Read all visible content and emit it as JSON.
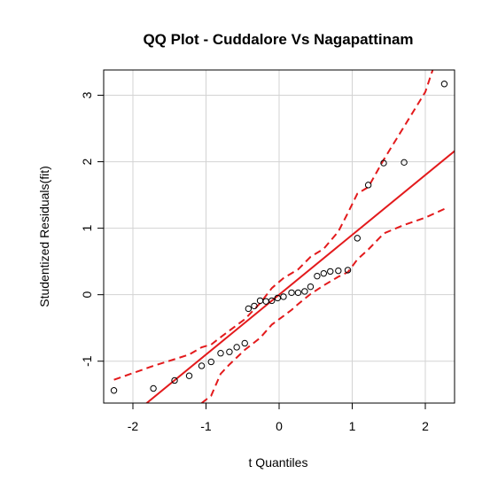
{
  "chart_data": {
    "type": "scatter",
    "title": "QQ Plot - Cuddalore Vs Nagapattinam",
    "xlabel": "t Quantiles",
    "ylabel": "Studentized Residuals(fit)",
    "xlim": [
      -2.4,
      2.4
    ],
    "ylim": [
      -1.63,
      3.38
    ],
    "xticks": [
      -2,
      -1,
      0,
      1,
      2
    ],
    "yticks": [
      -1,
      0,
      1,
      2,
      3
    ],
    "grid": true,
    "colors": {
      "reference": "#e31a1c",
      "points": "#000000",
      "grid": "#d3d3d3"
    },
    "points": [
      [
        -2.26,
        -1.44
      ],
      [
        -1.72,
        -1.41
      ],
      [
        -1.43,
        -1.29
      ],
      [
        -1.23,
        -1.22
      ],
      [
        -1.06,
        -1.07
      ],
      [
        -0.93,
        -1.01
      ],
      [
        -0.8,
        -0.88
      ],
      [
        -0.68,
        -0.86
      ],
      [
        -0.58,
        -0.79
      ],
      [
        -0.47,
        -0.73
      ],
      [
        -0.42,
        -0.21
      ],
      [
        -0.34,
        -0.17
      ],
      [
        -0.26,
        -0.09
      ],
      [
        -0.18,
        -0.1
      ],
      [
        -0.1,
        -0.09
      ],
      [
        -0.02,
        -0.05
      ],
      [
        0.06,
        -0.03
      ],
      [
        0.17,
        0.03
      ],
      [
        0.26,
        0.03
      ],
      [
        0.35,
        0.05
      ],
      [
        0.43,
        0.12
      ],
      [
        0.52,
        0.28
      ],
      [
        0.61,
        0.32
      ],
      [
        0.7,
        0.35
      ],
      [
        0.81,
        0.36
      ],
      [
        0.94,
        0.37
      ],
      [
        1.07,
        0.85
      ],
      [
        1.22,
        1.65
      ],
      [
        1.43,
        1.98
      ],
      [
        1.71,
        1.99
      ],
      [
        2.26,
        3.17
      ]
    ],
    "reference_line": {
      "intercept": 0.0,
      "slope": 0.9
    },
    "envelope_upper": [
      [
        -2.26,
        -1.28
      ],
      [
        -1.72,
        -1.07
      ],
      [
        -1.43,
        -0.97
      ],
      [
        -1.23,
        -0.9
      ],
      [
        -1.06,
        -0.79
      ],
      [
        -0.93,
        -0.75
      ],
      [
        -0.8,
        -0.64
      ],
      [
        -0.68,
        -0.54
      ],
      [
        -0.47,
        -0.37
      ],
      [
        -0.26,
        -0.13
      ],
      [
        -0.1,
        0.1
      ],
      [
        0.06,
        0.25
      ],
      [
        0.26,
        0.38
      ],
      [
        0.43,
        0.57
      ],
      [
        0.61,
        0.69
      ],
      [
        0.81,
        0.95
      ],
      [
        0.94,
        1.23
      ],
      [
        1.07,
        1.52
      ],
      [
        1.22,
        1.62
      ],
      [
        1.43,
        2.03
      ],
      [
        1.71,
        2.53
      ],
      [
        2.0,
        3.05
      ],
      [
        2.1,
        3.38
      ]
    ],
    "envelope_lower": [
      [
        -1.06,
        -1.63
      ],
      [
        -0.93,
        -1.52
      ],
      [
        -0.8,
        -1.19
      ],
      [
        -0.68,
        -1.05
      ],
      [
        -0.47,
        -0.83
      ],
      [
        -0.26,
        -0.65
      ],
      [
        -0.1,
        -0.45
      ],
      [
        0.06,
        -0.32
      ],
      [
        0.17,
        -0.23
      ],
      [
        0.26,
        -0.14
      ],
      [
        0.43,
        0.01
      ],
      [
        0.61,
        0.14
      ],
      [
        0.81,
        0.27
      ],
      [
        0.94,
        0.34
      ],
      [
        1.07,
        0.53
      ],
      [
        1.22,
        0.68
      ],
      [
        1.43,
        0.92
      ],
      [
        1.71,
        1.05
      ],
      [
        2.0,
        1.16
      ],
      [
        2.26,
        1.29
      ]
    ]
  }
}
